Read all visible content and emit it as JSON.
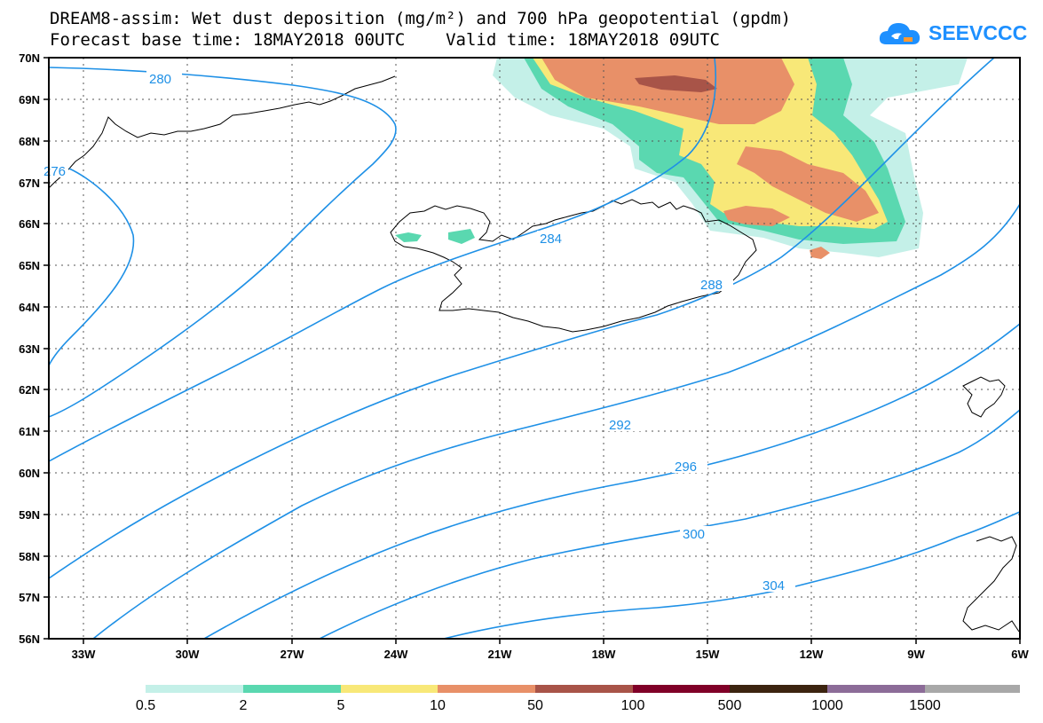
{
  "title_line1": "DREAM8-assim: Wet dust deposition (mg/m²) and 700 hPa geopotential (gpdm)",
  "title_line2": "Forecast base time: 18MAY2018 00UTC    Valid time: 18MAY2018 09UTC",
  "logo": {
    "text": "SEEVCCC",
    "icon": "cloud-logo-icon",
    "color": "#1e90ff"
  },
  "map": {
    "lon_range": [
      -34.5,
      -6
    ],
    "lat_range": [
      56,
      70
    ],
    "lon_ticks": [
      {
        "value": -33,
        "label": "33W"
      },
      {
        "value": -30,
        "label": "30W"
      },
      {
        "value": -27,
        "label": "27W"
      },
      {
        "value": -24,
        "label": "24W"
      },
      {
        "value": -21,
        "label": "21W"
      },
      {
        "value": -18,
        "label": "18W"
      },
      {
        "value": -15,
        "label": "15W"
      },
      {
        "value": -12,
        "label": "12W"
      },
      {
        "value": -9,
        "label": "9W"
      },
      {
        "value": -6,
        "label": "6W"
      }
    ],
    "lat_ticks": [
      {
        "value": 70,
        "label": "70N"
      },
      {
        "value": 69,
        "label": "69N"
      },
      {
        "value": 68,
        "label": "68N"
      },
      {
        "value": 67,
        "label": "67N"
      },
      {
        "value": 66,
        "label": "66N"
      },
      {
        "value": 65,
        "label": "65N"
      },
      {
        "value": 64,
        "label": "64N"
      },
      {
        "value": 63,
        "label": "63N"
      },
      {
        "value": 62,
        "label": "62N"
      },
      {
        "value": 61,
        "label": "61N"
      },
      {
        "value": 60,
        "label": "60N"
      },
      {
        "value": 59,
        "label": "59N"
      },
      {
        "value": 58,
        "label": "58N"
      },
      {
        "value": 57,
        "label": "57N"
      },
      {
        "value": 56,
        "label": "56N"
      }
    ],
    "contour_color": "#1e90e6",
    "contour_labels": [
      {
        "text": "280"
      },
      {
        "text": "276"
      },
      {
        "text": "284"
      },
      {
        "text": "288"
      },
      {
        "text": "292"
      },
      {
        "text": "296"
      },
      {
        "text": "300"
      },
      {
        "text": "304"
      }
    ],
    "grid": "dotted"
  },
  "colorbar": {
    "bins": [
      {
        "color": "#c4f0e8"
      },
      {
        "color": "#5ad8b0"
      },
      {
        "color": "#f8e878"
      },
      {
        "color": "#e89068"
      },
      {
        "color": "#a85448"
      },
      {
        "color": "#800028"
      },
      {
        "color": "#3c2410"
      },
      {
        "color": "#8c6c98"
      },
      {
        "color": "#a8a8a8"
      }
    ],
    "labels": [
      "0.5",
      "2",
      "5",
      "10",
      "50",
      "100",
      "500",
      "1000",
      "1500"
    ]
  }
}
